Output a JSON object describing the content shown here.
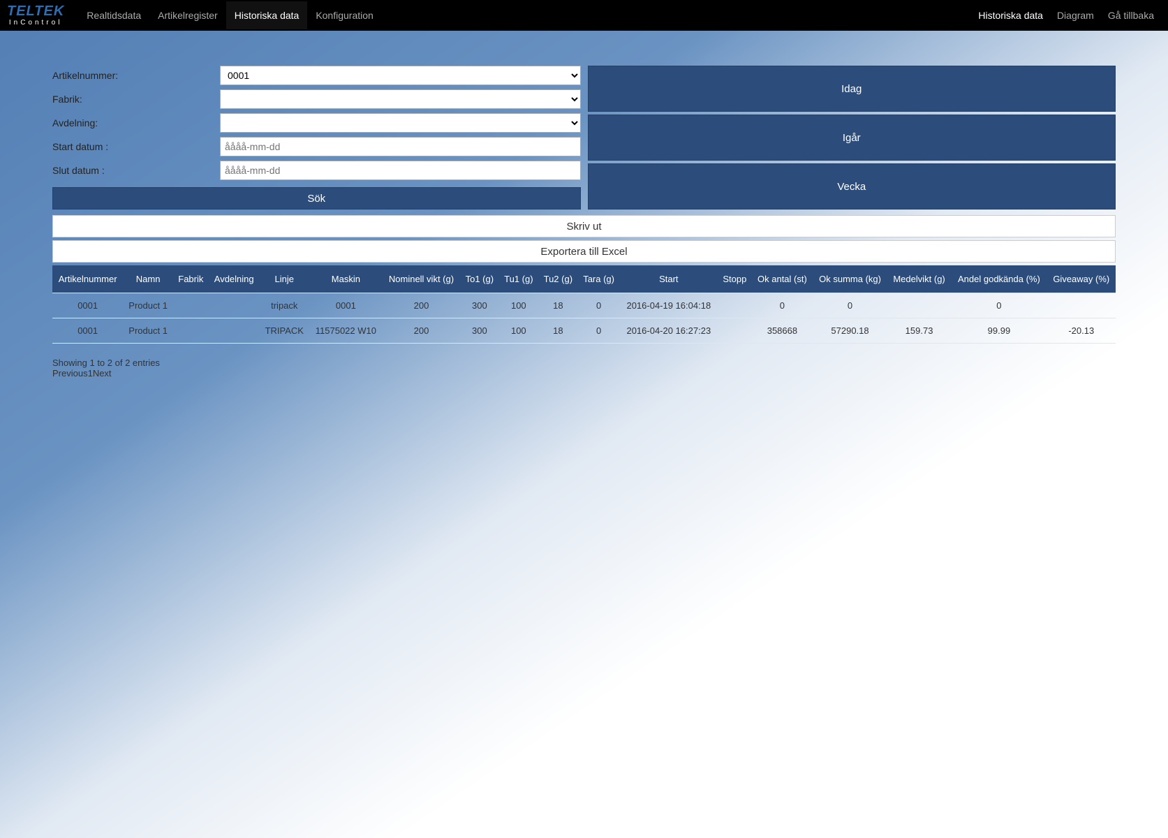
{
  "logo": {
    "top": "TELTEK",
    "bottom": "InControl"
  },
  "nav": {
    "left": [
      {
        "label": "Realtidsdata",
        "active": false
      },
      {
        "label": "Artikelregister",
        "active": false
      },
      {
        "label": "Historiska data",
        "active": true
      },
      {
        "label": "Konfiguration",
        "active": false
      }
    ],
    "right": [
      {
        "label": "Historiska data",
        "active": true
      },
      {
        "label": "Diagram",
        "active": false
      },
      {
        "label": "Gå tillbaka",
        "active": false
      }
    ]
  },
  "filters": {
    "artikelnummer": {
      "label": "Artikelnummer:",
      "value": "0001"
    },
    "fabrik": {
      "label": "Fabrik:",
      "value": ""
    },
    "avdelning": {
      "label": "Avdelning:",
      "value": ""
    },
    "start": {
      "label": "Start datum :",
      "placeholder": "åååå-mm-dd"
    },
    "slut": {
      "label": "Slut datum :",
      "placeholder": "åååå-mm-dd"
    },
    "search": "Sök"
  },
  "quick": {
    "idag": "Idag",
    "igar": "Igår",
    "vecka": "Vecka"
  },
  "actions": {
    "print": "Skriv ut",
    "excel": "Exportera till Excel"
  },
  "table": {
    "headers": [
      "Artikelnummer",
      "Namn",
      "Fabrik",
      "Avdelning",
      "Linje",
      "Maskin",
      "Nominell vikt (g)",
      "To1 (g)",
      "Tu1 (g)",
      "Tu2 (g)",
      "Tara (g)",
      "Start",
      "Stopp",
      "Ok antal (st)",
      "Ok summa (kg)",
      "Medelvikt (g)",
      "Andel godkända (%)",
      "Giveaway (%)"
    ],
    "rows": [
      [
        "0001",
        "Product 1",
        "",
        "",
        "tripack",
        "0001",
        "200",
        "300",
        "100",
        "18",
        "0",
        "2016-04-19 16:04:18",
        "",
        "0",
        "0",
        "",
        "0",
        ""
      ],
      [
        "0001",
        "Product 1",
        "",
        "",
        "TRIPACK",
        "11575022 W10",
        "200",
        "300",
        "100",
        "18",
        "0",
        "2016-04-20 16:27:23",
        "",
        "358668",
        "57290.18",
        "159.73",
        "99.99",
        "-20.13"
      ]
    ]
  },
  "footer": {
    "info": "Showing 1 to 2 of 2 entries",
    "prev": "Previous",
    "page": "1",
    "next": "Next"
  },
  "colors": {
    "primary": "#2c4c7c",
    "navbar": "#000000",
    "text_light": "#ffffff"
  }
}
